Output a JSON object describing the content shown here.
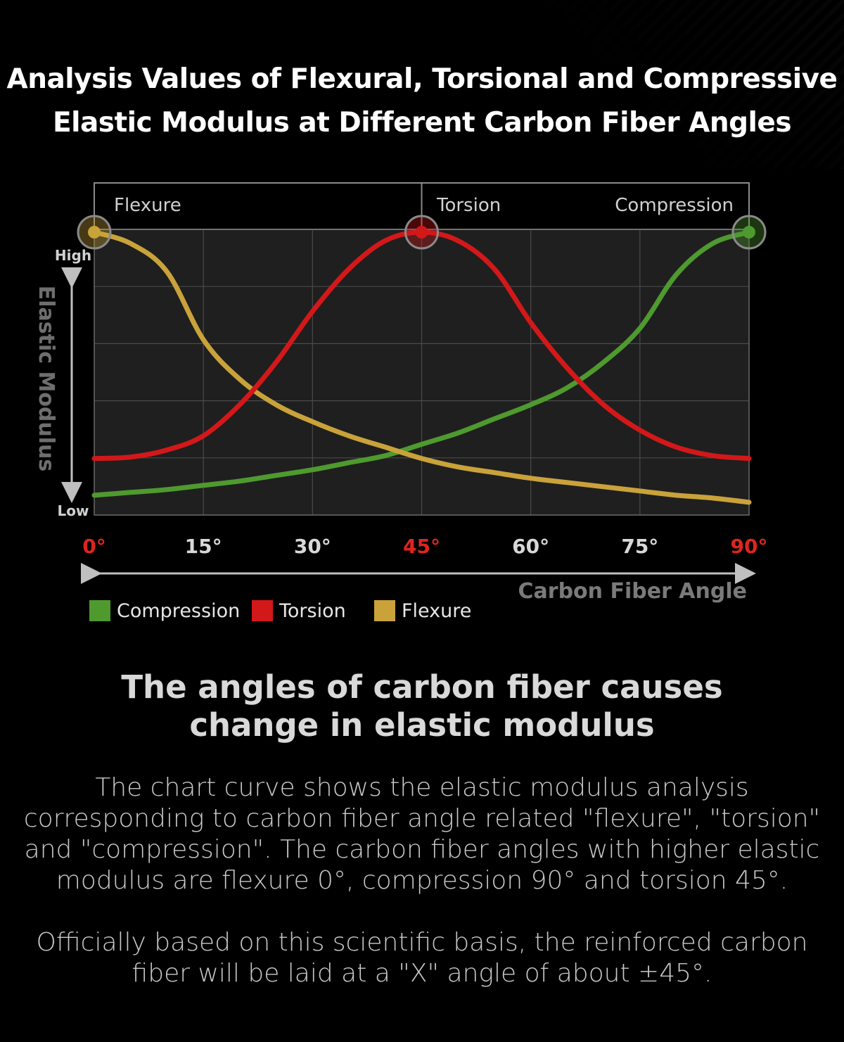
{
  "title_lines": [
    "Analysis Values of Flexural, Torsional and Compressive",
    "Elastic Modulus at Different Carbon Fiber Angles"
  ],
  "chart_data": {
    "type": "line",
    "header_labels": [
      "Flexure",
      "Torsion",
      "Compression"
    ],
    "y_axis": {
      "label": "Elastic Modulus",
      "high": "High",
      "low": "Low"
    },
    "x_axis": {
      "label": "Carbon Fiber Angle",
      "ticks": [
        "0°",
        "15°",
        "30°",
        "45°",
        "60°",
        "75°",
        "90°"
      ],
      "highlighted_ticks": [
        "0°",
        "45°",
        "90°"
      ]
    },
    "xlim": [
      0,
      90
    ],
    "ylim": [
      0,
      1
    ],
    "x": [
      0,
      5,
      10,
      15,
      20,
      25,
      30,
      35,
      40,
      45,
      50,
      55,
      60,
      65,
      70,
      75,
      80,
      85,
      90
    ],
    "series": [
      {
        "name": "Compression",
        "color": "#4e9a2f",
        "values": [
          0.07,
          0.08,
          0.09,
          0.105,
          0.12,
          0.14,
          0.16,
          0.185,
          0.21,
          0.25,
          0.29,
          0.34,
          0.39,
          0.45,
          0.54,
          0.66,
          0.85,
          0.96,
          1.0
        ]
      },
      {
        "name": "Torsion",
        "color": "#d3181a",
        "values": [
          0.2,
          0.205,
          0.23,
          0.28,
          0.39,
          0.54,
          0.72,
          0.87,
          0.97,
          1.0,
          0.97,
          0.87,
          0.68,
          0.52,
          0.39,
          0.3,
          0.24,
          0.21,
          0.2
        ]
      },
      {
        "name": "Flexure",
        "color": "#c9a23a",
        "values": [
          1.0,
          0.96,
          0.86,
          0.62,
          0.48,
          0.39,
          0.33,
          0.28,
          0.24,
          0.2,
          0.17,
          0.15,
          0.13,
          0.115,
          0.1,
          0.085,
          0.07,
          0.06,
          0.045
        ]
      }
    ],
    "peaks": [
      {
        "series": "Flexure",
        "x": 0,
        "y": 1.0
      },
      {
        "series": "Torsion",
        "x": 45,
        "y": 1.0
      },
      {
        "series": "Compression",
        "x": 90,
        "y": 1.0
      }
    ],
    "legend": [
      "Compression",
      "Torsion",
      "Flexure"
    ],
    "colors": {
      "highlight_tick": "#e0241f",
      "tick": "#d8d8d8",
      "grid": "#4a4a4a",
      "plot_bg": "#1f1f1f"
    }
  },
  "headline_lines": [
    "The angles of carbon fiber causes",
    "change in elastic modulus"
  ],
  "paragraph1_lines": [
    "The chart curve shows the elastic modulus analysis",
    "corresponding to carbon fiber angle related \"flexure\", \"torsion\"",
    "and \"compression\". The carbon fiber angles with higher elastic",
    "modulus are flexure 0°, compression 90° and torsion 45°."
  ],
  "paragraph2_lines": [
    "Officially based on this scientific basis, the reinforced carbon",
    "fiber will be laid at a \"X\" angle of about ±45°."
  ]
}
